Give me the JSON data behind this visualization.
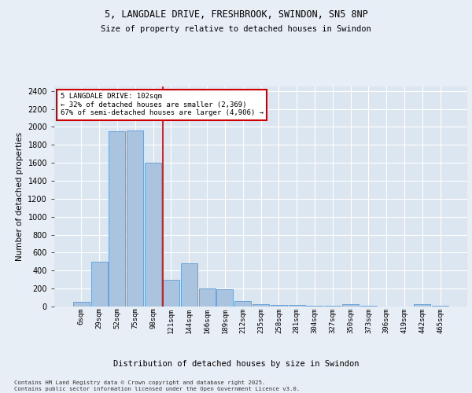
{
  "title1": "5, LANGDALE DRIVE, FRESHBROOK, SWINDON, SN5 8NP",
  "title2": "Size of property relative to detached houses in Swindon",
  "xlabel": "Distribution of detached houses by size in Swindon",
  "ylabel": "Number of detached properties",
  "categories": [
    "6sqm",
    "29sqm",
    "52sqm",
    "75sqm",
    "98sqm",
    "121sqm",
    "144sqm",
    "166sqm",
    "189sqm",
    "212sqm",
    "235sqm",
    "258sqm",
    "281sqm",
    "304sqm",
    "327sqm",
    "350sqm",
    "373sqm",
    "396sqm",
    "419sqm",
    "442sqm",
    "465sqm"
  ],
  "values": [
    50,
    500,
    1950,
    1960,
    1600,
    300,
    480,
    200,
    195,
    60,
    30,
    20,
    15,
    12,
    12,
    30,
    8,
    2,
    2,
    30,
    5
  ],
  "bar_color": "#aac4e0",
  "bar_edge_color": "#5b9bd5",
  "background_color": "#dce6f1",
  "fig_background": "#e8eef5",
  "grid_color": "#ffffff",
  "vline_x": 4.55,
  "vline_color": "#cc0000",
  "annotation_text": "5 LANGDALE DRIVE: 102sqm\n← 32% of detached houses are smaller (2,369)\n67% of semi-detached houses are larger (4,906) →",
  "annotation_box_color": "#ffffff",
  "annotation_box_edge": "#cc0000",
  "footer": "Contains HM Land Registry data © Crown copyright and database right 2025.\nContains public sector information licensed under the Open Government Licence v3.0.",
  "ylim": [
    0,
    2450
  ],
  "yticks": [
    0,
    200,
    400,
    600,
    800,
    1000,
    1200,
    1400,
    1600,
    1800,
    2000,
    2200,
    2400
  ]
}
